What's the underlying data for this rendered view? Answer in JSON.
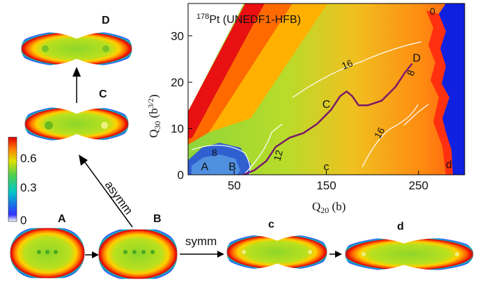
{
  "figure": {
    "title_sup": "178",
    "title_main": "Pt (UNEDF1-HFB)",
    "xlabel_main": "Q",
    "xlabel_sub": "20",
    "xlabel_unit": " (b)",
    "ylabel_main": "Q",
    "ylabel_sub": "30",
    "ylabel_unit_open": " (b",
    "ylabel_unit_sup": "3/2",
    "ylabel_unit_close": ")",
    "colorbar_ticks": [
      "0.6",
      "0.3",
      "0"
    ],
    "shape_labels": {
      "A": "A",
      "B": "B",
      "C": "C",
      "D": "D",
      "c": "c",
      "d": "d"
    },
    "arrow_labels": {
      "asymm": "asymm",
      "symm": "symm"
    },
    "contour_labels": [
      "0",
      "8",
      "16",
      "16",
      "12",
      "8",
      "16"
    ]
  },
  "chart_data": {
    "type": "heatmap",
    "title": "178Pt (UNEDF1-HFB)",
    "xlabel": "Q20 (b)",
    "ylabel": "Q30 (b3/2)",
    "xlim": [
      0,
      300
    ],
    "ylim": [
      0,
      37
    ],
    "x_ticks": [
      50,
      150,
      250
    ],
    "y_ticks": [
      0,
      10,
      20,
      30
    ],
    "contour_levels": [
      0,
      8,
      12,
      16
    ],
    "fission_path": [
      [
        60,
        0
      ],
      [
        72,
        1
      ],
      [
        85,
        3
      ],
      [
        95,
        6
      ],
      [
        110,
        8
      ],
      [
        125,
        9
      ],
      [
        140,
        11
      ],
      [
        155,
        14
      ],
      [
        165,
        17
      ],
      [
        172,
        18
      ],
      [
        178,
        17
      ],
      [
        185,
        15
      ],
      [
        195,
        15
      ],
      [
        210,
        16
      ],
      [
        225,
        19
      ],
      [
        235,
        22
      ],
      [
        243,
        24
      ]
    ],
    "points": [
      {
        "label": "A",
        "x": 18,
        "y": 0.5
      },
      {
        "label": "B",
        "x": 48,
        "y": 0.5
      },
      {
        "label": "C",
        "x": 150,
        "y": 14
      },
      {
        "label": "D",
        "x": 248,
        "y": 24
      },
      {
        "label": "c",
        "x": 150,
        "y": 0.5
      },
      {
        "label": "d",
        "x": 283,
        "y": 1
      }
    ],
    "colorbar": {
      "label_ticks": [
        0,
        0.3,
        0.6
      ]
    }
  }
}
